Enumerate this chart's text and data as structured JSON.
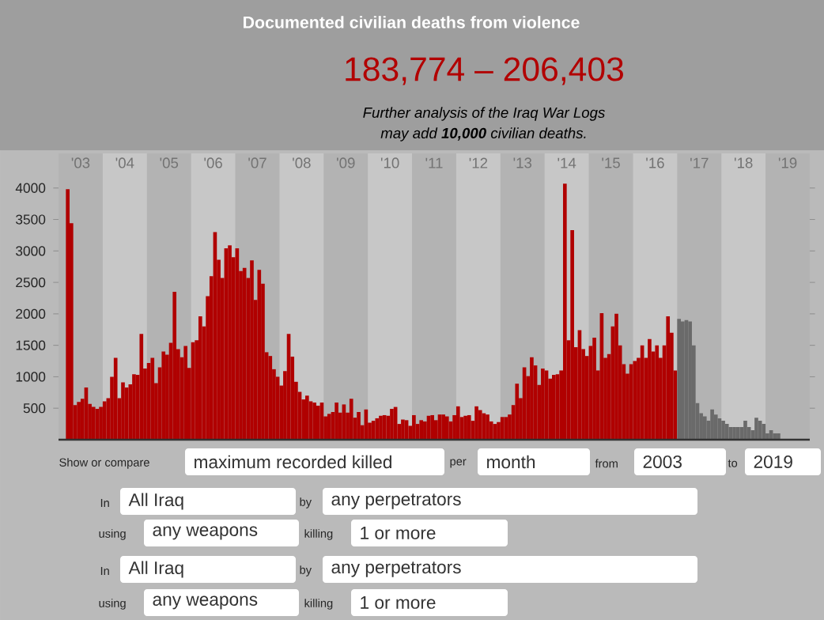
{
  "chart_data": {
    "type": "bar",
    "title": "Documented civilian deaths from violence",
    "subtitle": "183,774 – 206,403",
    "annotations": [
      "Further analysis of the Iraq War Logs",
      "may add **10,000** civilian deaths.",
      "Show or compare",
      "maximum recorded killed",
      "per",
      "month",
      "from",
      "2003",
      "to",
      "2019",
      "In",
      "All Iraq",
      "by",
      "any perpetrators",
      "using",
      "any weapons",
      "killing",
      "1 or more",
      "In",
      "All Iraq",
      "by",
      "any perpetrators",
      "using",
      "any weapons",
      "killing",
      "1 or more"
    ],
    "series": [
      {
        "color": "#b00000",
        "x": [
          "2003-01",
          "2003-02",
          "2003-03",
          "2003-04",
          "2003-05",
          "2003-06",
          "2003-07",
          "2003-08",
          "2003-09",
          "2003-10",
          "2003-11",
          "2003-12",
          "2004-01",
          "2004-02",
          "2004-03",
          "2004-04",
          "2004-05",
          "2004-06",
          "2004-07",
          "2004-08",
          "2004-09",
          "2004-10",
          "2004-11",
          "2004-12",
          "2005-01",
          "2005-02",
          "2005-03",
          "2005-04",
          "2005-05",
          "2005-06",
          "2005-07",
          "2005-08",
          "2005-09",
          "2005-10",
          "2005-11",
          "2005-12",
          "2006-01",
          "2006-02",
          "2006-03",
          "2006-04",
          "2006-05",
          "2006-06",
          "2006-07",
          "2006-08",
          "2006-09",
          "2006-10",
          "2006-11",
          "2006-12",
          "2007-01",
          "2007-02",
          "2007-03",
          "2007-04",
          "2007-05",
          "2007-06",
          "2007-07",
          "2007-08",
          "2007-09",
          "2007-10",
          "2007-11",
          "2007-12",
          "2008-01",
          "2008-02",
          "2008-03",
          "2008-04",
          "2008-05",
          "2008-06",
          "2008-07",
          "2008-08",
          "2008-09",
          "2008-10",
          "2008-11",
          "2008-12",
          "2009-01",
          "2009-02",
          "2009-03",
          "2009-04",
          "2009-05",
          "2009-06",
          "2009-07",
          "2009-08",
          "2009-09",
          "2009-10",
          "2009-11",
          "2009-12",
          "2010-01",
          "2010-02",
          "2010-03",
          "2010-04",
          "2010-05",
          "2010-06",
          "2010-07",
          "2010-08",
          "2010-09",
          "2010-10",
          "2010-11",
          "2010-12",
          "2011-01",
          "2011-02",
          "2011-03",
          "2011-04",
          "2011-05",
          "2011-06",
          "2011-07",
          "2011-08",
          "2011-09",
          "2011-10",
          "2011-11",
          "2011-12",
          "2012-01",
          "2012-02",
          "2012-03",
          "2012-04",
          "2012-05",
          "2012-06",
          "2012-07",
          "2012-08",
          "2012-09",
          "2012-10",
          "2012-11",
          "2012-12",
          "2013-01",
          "2013-02",
          "2013-03",
          "2013-04",
          "2013-05",
          "2013-06",
          "2013-07",
          "2013-08",
          "2013-09",
          "2013-10",
          "2013-11",
          "2013-12",
          "2014-01",
          "2014-02",
          "2014-03",
          "2014-04",
          "2014-05",
          "2014-06",
          "2014-07",
          "2014-08",
          "2014-09",
          "2014-10",
          "2014-11",
          "2014-12",
          "2015-01",
          "2015-02",
          "2015-03",
          "2015-04",
          "2015-05",
          "2015-06",
          "2015-07",
          "2015-08",
          "2015-09",
          "2015-10",
          "2015-11",
          "2015-12",
          "2016-01",
          "2016-02",
          "2016-03",
          "2016-04",
          "2016-05",
          "2016-06",
          "2016-07",
          "2016-08",
          "2016-09",
          "2016-10",
          "2016-11",
          "2016-12"
        ],
        "values": [
          0,
          0,
          3980,
          3440,
          550,
          600,
          650,
          830,
          570,
          520,
          490,
          520,
          610,
          660,
          1000,
          1300,
          660,
          910,
          830,
          880,
          1040,
          1030,
          1680,
          1130,
          1220,
          1300,
          900,
          1150,
          1400,
          1350,
          1540,
          2350,
          1440,
          1310,
          1490,
          1140,
          1550,
          1580,
          1960,
          1800,
          2280,
          2600,
          3300,
          2860,
          2570,
          3040,
          3090,
          2900,
          3040,
          2680,
          2730,
          2570,
          2850,
          2220,
          2700,
          2480,
          1390,
          1330,
          1120,
          1000,
          860,
          1090,
          1680,
          1320,
          920,
          760,
          640,
          700,
          610,
          590,
          540,
          590,
          370,
          410,
          440,
          590,
          430,
          560,
          430,
          650,
          350,
          440,
          230,
          480,
          270,
          300,
          340,
          380,
          390,
          380,
          490,
          520,
          250,
          320,
          310,
          220,
          390,
          250,
          310,
          290,
          380,
          390,
          310,
          400,
          400,
          370,
          290,
          390,
          530,
          360,
          380,
          390,
          300,
          530,
          470,
          420,
          400,
          290,
          250,
          280,
          360,
          360,
          400,
          550,
          890,
          660,
          1150,
          1010,
          1310,
          1180,
          870,
          1130,
          1100,
          970,
          1030,
          1040,
          1100,
          4070,
          1580,
          3330,
          1470,
          1740,
          1440,
          1330,
          1490,
          1620,
          1100,
          2010,
          1300,
          1360,
          1800,
          2000,
          1500,
          1200,
          1050,
          1200,
          1250,
          1300,
          1500,
          1300,
          1600,
          1400,
          1500,
          1300,
          1500,
          1960,
          1700,
          1100
        ]
      },
      {
        "color": "#6a6a6a",
        "x": [
          "2017-01",
          "2017-02",
          "2017-03",
          "2017-04",
          "2017-05",
          "2017-06",
          "2017-07",
          "2017-08",
          "2017-09",
          "2017-10",
          "2017-11",
          "2017-12",
          "2018-01",
          "2018-02",
          "2018-03",
          "2018-04",
          "2018-05",
          "2018-06",
          "2018-07",
          "2018-08",
          "2018-09",
          "2018-10",
          "2018-11",
          "2018-12",
          "2019-01",
          "2019-02",
          "2019-03",
          "2019-04"
        ],
        "values": [
          1920,
          1880,
          1900,
          1880,
          1500,
          580,
          420,
          370,
          300,
          480,
          400,
          340,
          300,
          250,
          200,
          200,
          200,
          200,
          300,
          200,
          150,
          350,
          300,
          250,
          100,
          150,
          100,
          100
        ]
      }
    ],
    "xlim": [
      "2003-01",
      "2020-01"
    ],
    "xticks": [
      {
        "value": "2003-07",
        "label": "'03"
      },
      {
        "value": "2004-07",
        "label": "'04"
      },
      {
        "value": "2005-07",
        "label": "'05"
      },
      {
        "value": "2006-07",
        "label": "'06"
      },
      {
        "value": "2007-07",
        "label": "'07"
      },
      {
        "value": "2008-07",
        "label": "'08"
      },
      {
        "value": "2009-07",
        "label": "'09"
      },
      {
        "value": "2010-07",
        "label": "'10"
      },
      {
        "value": "2011-07",
        "label": "'11"
      },
      {
        "value": "2012-07",
        "label": "'12"
      },
      {
        "value": "2013-07",
        "label": "'13"
      },
      {
        "value": "2014-07",
        "label": "'14"
      },
      {
        "value": "2015-07",
        "label": "'15"
      },
      {
        "value": "2016-07",
        "label": "'16"
      },
      {
        "value": "2017-07",
        "label": "'17"
      },
      {
        "value": "2018-07",
        "label": "'18"
      },
      {
        "value": "2019-07",
        "label": "'19"
      }
    ],
    "ylim": [
      0,
      4550
    ],
    "yticks": [
      500,
      1000,
      1500,
      2000,
      2500,
      3000,
      3500,
      4000
    ],
    "bands": [
      {
        "axis": "x",
        "from": "2003-01",
        "to": "2004-01",
        "color": "#b3b3b3"
      },
      {
        "axis": "x",
        "from": "2005-01",
        "to": "2006-01",
        "color": "#b3b3b3"
      },
      {
        "axis": "x",
        "from": "2007-01",
        "to": "2008-01",
        "color": "#b3b3b3"
      },
      {
        "axis": "x",
        "from": "2009-01",
        "to": "2010-01",
        "color": "#b3b3b3"
      },
      {
        "axis": "x",
        "from": "2011-01",
        "to": "2012-01",
        "color": "#b3b3b3"
      },
      {
        "axis": "x",
        "from": "2013-01",
        "to": "2014-01",
        "color": "#b3b3b3"
      },
      {
        "axis": "x",
        "from": "2015-01",
        "to": "2016-01",
        "color": "#b3b3b3"
      },
      {
        "axis": "x",
        "from": "2017-01",
        "to": "2018-01",
        "color": "#b3b3b3"
      },
      {
        "axis": "x",
        "from": "2019-01",
        "to": "2020-01",
        "color": "#b3b3b3"
      }
    ]
  }
}
